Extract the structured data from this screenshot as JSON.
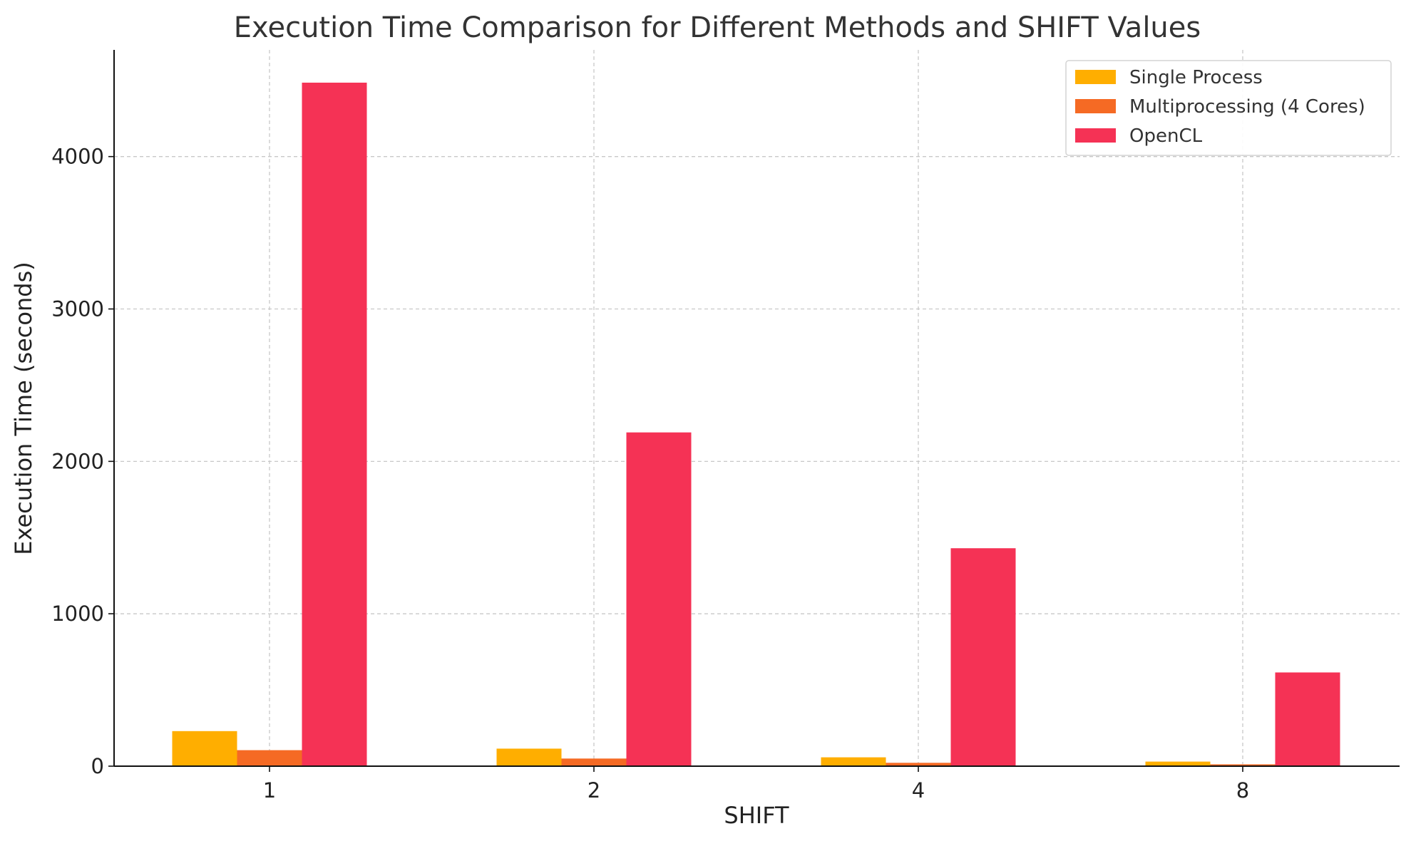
{
  "chart_data": {
    "type": "bar",
    "title": "Execution Time Comparison for Different Methods and SHIFT Values",
    "xlabel": "SHIFT",
    "ylabel": "Execution Time (seconds)",
    "categories": [
      "1",
      "2",
      "4",
      "8"
    ],
    "series": [
      {
        "name": "Single Process",
        "color": "#FFAE00",
        "values": [
          230,
          115,
          58,
          30
        ]
      },
      {
        "name": "Multiprocessing (4 Cores)",
        "color": "#F56A24",
        "values": [
          105,
          50,
          22,
          12
        ]
      },
      {
        "name": "OpenCL",
        "color": "#F53255",
        "values": [
          4485,
          2190,
          1430,
          615
        ]
      }
    ],
    "ylim": [
      0,
      4700
    ],
    "yticks": [
      0,
      1000,
      2000,
      3000,
      4000
    ],
    "grid": true,
    "legend_position": "top-right"
  }
}
